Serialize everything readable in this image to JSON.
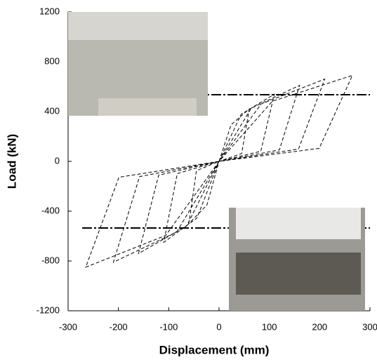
{
  "chart_data": {
    "type": "line",
    "x_label": "Displacement (mm)",
    "y_label": "Load (kN)",
    "xlim": [
      -300,
      300
    ],
    "ylim": [
      -1200,
      1200
    ],
    "xticks": [
      -300,
      -200,
      -100,
      0,
      100,
      200,
      300
    ],
    "yticks": [
      -1200,
      -800,
      -400,
      0,
      400,
      800,
      1200
    ],
    "hlines": [
      535,
      -535
    ],
    "series": [
      {
        "color": "#000000",
        "x": [
          0,
          24,
          60,
          45,
          0,
          -24,
          -60,
          -45,
          0,
          44,
          110,
          83,
          0,
          -44,
          -110,
          -83,
          0,
          64,
          160,
          120,
          0,
          -64,
          -160,
          -120,
          0,
          84,
          210,
          158,
          0,
          -84,
          -210,
          -158,
          0,
          106,
          265,
          199,
          0,
          -106,
          -265,
          -199,
          0
        ],
        "values": [
          0,
          294,
          420,
          63,
          0,
          -350,
          -500,
          -75,
          0,
          378,
          540,
          81,
          0,
          -455,
          -650,
          -98,
          0,
          427,
          610,
          92,
          0,
          -518,
          -740,
          -111,
          0,
          462,
          660,
          99,
          0,
          -567,
          -810,
          -122,
          0,
          483,
          690,
          104,
          0,
          -595,
          -850,
          -128,
          0
        ]
      }
    ]
  }
}
